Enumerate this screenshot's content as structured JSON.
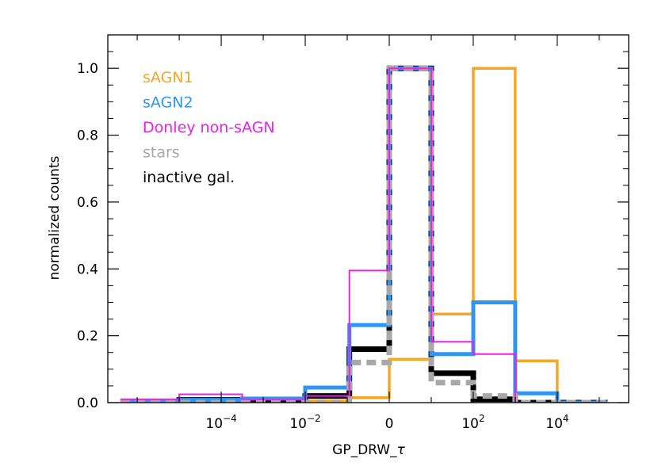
{
  "chart_data": {
    "type": "histogram",
    "xlabel_text": "GP_DRW_",
    "xlabel_symbol": "τ",
    "ylabel": "normalized counts",
    "ylim": [
      0,
      1.1
    ],
    "y_ticks": [
      "0.0",
      "0.2",
      "0.4",
      "0.6",
      "0.8",
      "1.0"
    ],
    "y_tick_values": [
      0,
      0.2,
      0.4,
      0.6,
      0.8,
      1.0
    ],
    "x_ticks": [
      {
        "label": "10",
        "exp": "−4",
        "pos": 1
      },
      {
        "label": "10",
        "exp": "−2",
        "pos": 3
      },
      {
        "label": "0",
        "exp": "",
        "pos": 5
      },
      {
        "label": "10",
        "exp": "2",
        "pos": 7
      },
      {
        "label": "10",
        "exp": "4",
        "pos": 9
      }
    ],
    "x_range": [
      -1.7,
      10.7
    ],
    "bin_edges": [
      -1.4,
      0,
      1.5,
      3,
      4.05,
      5,
      6,
      7,
      8,
      9,
      10.2
    ],
    "grid": false,
    "legend_position": "top-left",
    "series": [
      {
        "name": "sAGN1",
        "color": "#f5a623",
        "style": "solid",
        "width": 3.5,
        "counts": [
          0,
          0,
          0.003,
          0.005,
          0.015,
          0.13,
          0.265,
          1.0,
          0.125,
          0
        ]
      },
      {
        "name": "sAGN2",
        "color": "#2e96f0",
        "style": "solid",
        "width": 5,
        "counts": [
          0.005,
          0.008,
          0.012,
          0.045,
          0.232,
          1.0,
          0.145,
          0.3,
          0.028,
          0
        ]
      },
      {
        "name": "Donley non-sAGN",
        "color": "#e524e5",
        "style": "solid",
        "width": 2,
        "counts": [
          0.01,
          0.025,
          0.01,
          0.02,
          0.395,
          1.0,
          0.182,
          0.145,
          0,
          0
        ]
      },
      {
        "name": "stars",
        "color": "#a8a8a8",
        "style": "dashed",
        "width": 7,
        "counts": [
          0,
          0,
          0,
          0,
          0.12,
          1.0,
          0.06,
          0.02,
          0,
          0
        ]
      },
      {
        "name": "inactive gal.",
        "color": "#000000",
        "style": "solid",
        "width": 7,
        "counts": [
          0.003,
          0.008,
          0.008,
          0.02,
          0.16,
          1.0,
          0.088,
          0.01,
          0,
          0
        ]
      }
    ]
  }
}
